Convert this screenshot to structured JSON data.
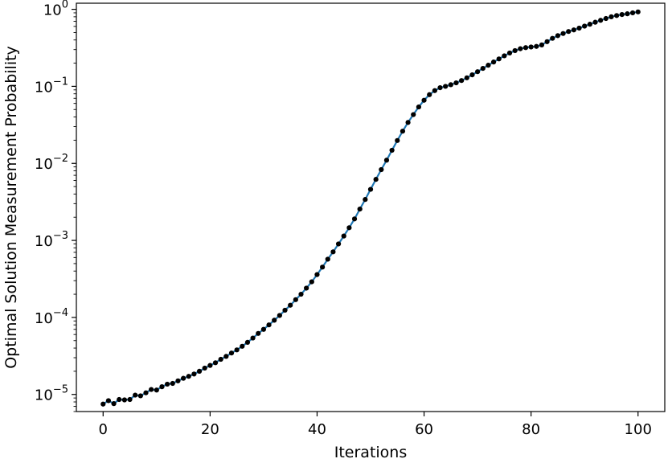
{
  "chart_data": {
    "type": "line",
    "title": "",
    "xlabel": "Iterations",
    "ylabel": "Optimal Solution Measurement Probability",
    "xlim": [
      -5,
      105
    ],
    "ylim": [
      6e-06,
      1.2
    ],
    "y_scale": "log",
    "grid": false,
    "x_ticks": [
      {
        "value": 0,
        "label": "0"
      },
      {
        "value": 20,
        "label": "20"
      },
      {
        "value": 40,
        "label": "40"
      },
      {
        "value": 60,
        "label": "60"
      },
      {
        "value": 80,
        "label": "80"
      },
      {
        "value": 100,
        "label": "100"
      }
    ],
    "y_ticks": [
      {
        "value": 1e-05,
        "base": "10",
        "exp": "−5"
      },
      {
        "value": 0.0001,
        "base": "10",
        "exp": "−4"
      },
      {
        "value": 0.001,
        "base": "10",
        "exp": "−3"
      },
      {
        "value": 0.01,
        "base": "10",
        "exp": "−2"
      },
      {
        "value": 0.1,
        "base": "10",
        "exp": "−1"
      },
      {
        "value": 1,
        "base": "10",
        "exp": "0"
      }
    ],
    "series": [
      {
        "line_color": "#1f77b4",
        "marker_color": "#000000",
        "x": [
          0,
          1,
          2,
          3,
          4,
          5,
          6,
          7,
          8,
          9,
          10,
          11,
          12,
          13,
          14,
          15,
          16,
          17,
          18,
          19,
          20,
          21,
          22,
          23,
          24,
          25,
          26,
          27,
          28,
          29,
          30,
          31,
          32,
          33,
          34,
          35,
          36,
          37,
          38,
          39,
          40,
          41,
          42,
          43,
          44,
          45,
          46,
          47,
          48,
          49,
          50,
          51,
          52,
          53,
          54,
          55,
          56,
          57,
          58,
          59,
          60,
          61,
          62,
          63,
          64,
          65,
          66,
          67,
          68,
          69,
          70,
          71,
          72,
          73,
          74,
          75,
          76,
          77,
          78,
          79,
          80,
          81,
          82,
          83,
          84,
          85,
          86,
          87,
          88,
          89,
          90,
          91,
          92,
          93,
          94,
          95,
          96,
          97,
          98,
          99,
          100
        ],
        "y": [
          7.5e-06,
          8.3e-06,
          7.6e-06,
          8.6e-06,
          8.5e-06,
          8.6e-06,
          9.8e-06,
          9.6e-06,
          1.05e-05,
          1.16e-05,
          1.14e-05,
          1.26e-05,
          1.36e-05,
          1.39e-05,
          1.5e-05,
          1.62e-05,
          1.72e-05,
          1.84e-05,
          2e-05,
          2.2e-05,
          2.38e-05,
          2.58e-05,
          2.86e-05,
          3.12e-05,
          3.45e-05,
          3.79e-05,
          4.22e-05,
          4.75e-05,
          5.4e-05,
          6.2e-05,
          7e-05,
          8e-05,
          9.2e-05,
          0.000106,
          0.000124,
          0.000144,
          0.00017,
          0.0002,
          0.00024,
          0.00029,
          0.00036,
          0.00045,
          0.00057,
          0.00071,
          0.0009,
          0.00114,
          0.00146,
          0.0019,
          0.00255,
          0.0034,
          0.0046,
          0.0062,
          0.0083,
          0.011,
          0.0148,
          0.0198,
          0.0262,
          0.034,
          0.043,
          0.054,
          0.066,
          0.078,
          0.088,
          0.096,
          0.1,
          0.105,
          0.111,
          0.119,
          0.129,
          0.141,
          0.155,
          0.171,
          0.188,
          0.207,
          0.227,
          0.249,
          0.271,
          0.291,
          0.308,
          0.318,
          0.324,
          0.33,
          0.345,
          0.38,
          0.42,
          0.455,
          0.485,
          0.515,
          0.54,
          0.57,
          0.605,
          0.64,
          0.68,
          0.72,
          0.76,
          0.8,
          0.83,
          0.855,
          0.875,
          0.9,
          0.925
        ]
      }
    ]
  }
}
